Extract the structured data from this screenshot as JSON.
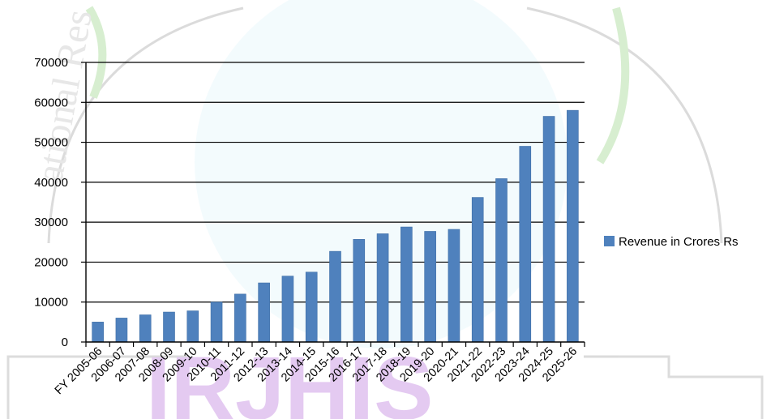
{
  "chart_data": {
    "type": "bar",
    "categories": [
      "FY 2005-06",
      "2006-07",
      "2007-08",
      "2008-09",
      "2009-10",
      "2010-11",
      "2011-12",
      "2012-13",
      "2013-14",
      "2014-15",
      "2015-16",
      "2016-17",
      "2017-18",
      "2018-19",
      "2019-20",
      "2020-21",
      "2021-22",
      "2022-23",
      "2023-24",
      "2024-25",
      "2025-26"
    ],
    "series": [
      {
        "name": "Revenue in Crores Rs",
        "values": [
          5000,
          6000,
          6800,
          7500,
          7800,
          10000,
          12000,
          14800,
          16500,
          17500,
          22700,
          25700,
          27100,
          28800,
          27700,
          28200,
          36200,
          40900,
          49000,
          56500,
          58000
        ]
      }
    ],
    "ylim": [
      0,
      70000
    ],
    "yticks": [
      0,
      10000,
      20000,
      30000,
      40000,
      50000,
      60000,
      70000
    ],
    "grid": true,
    "legend_position": "right",
    "colors": {
      "bar": "#4f81bd",
      "bar_edge": "#3e6ea6",
      "grid": "#000000",
      "axis": "#000000"
    },
    "title": "",
    "xlabel": "",
    "ylabel": ""
  }
}
